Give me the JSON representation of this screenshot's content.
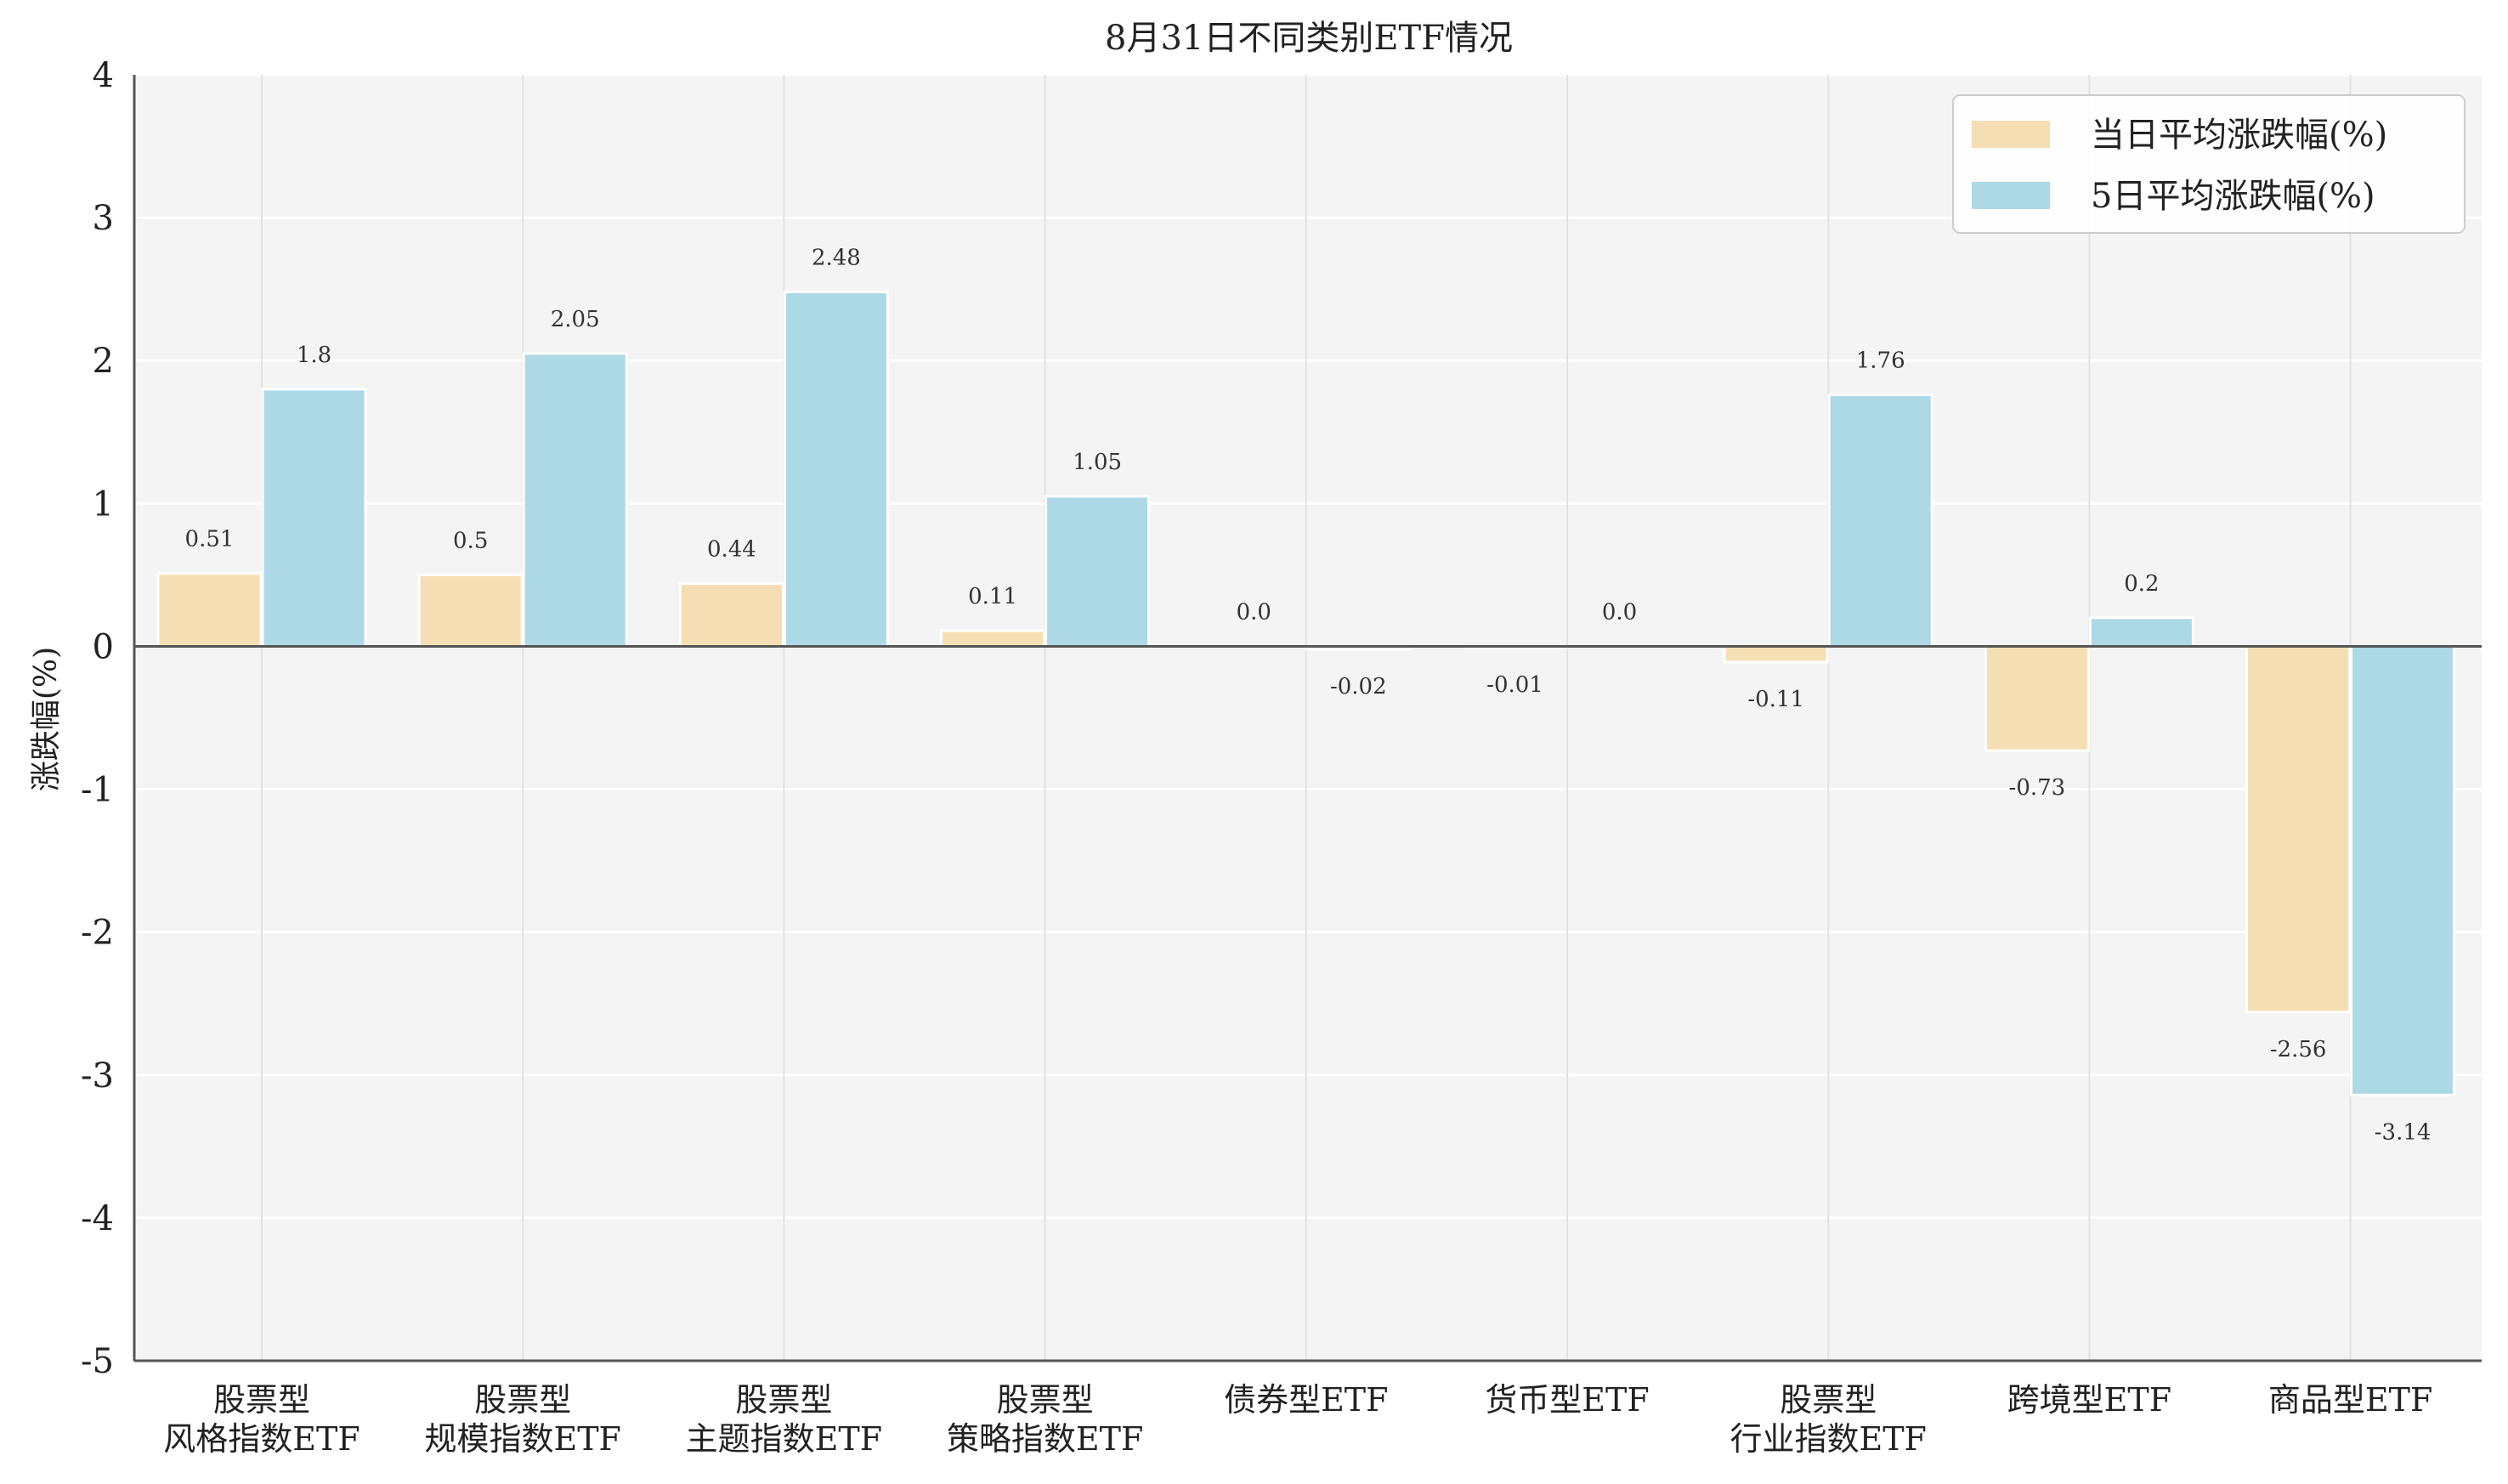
{
  "chart_data": {
    "type": "bar",
    "title": "8月31日不同类别ETF情况",
    "ylabel": "涨跌幅(%)",
    "xlabel": "",
    "ylim": [
      -5,
      4
    ],
    "yticks": [
      -5,
      -4,
      -3,
      -2,
      -1,
      0,
      1,
      2,
      3,
      4
    ],
    "grid": true,
    "legend_position": "top-right",
    "categories": [
      [
        "股票型",
        "风格指数ETF"
      ],
      [
        "股票型",
        "规模指数ETF"
      ],
      [
        "股票型",
        "主题指数ETF"
      ],
      [
        "股票型",
        "策略指数ETF"
      ],
      [
        "债券型ETF"
      ],
      [
        "货币型ETF"
      ],
      [
        "股票型",
        "行业指数ETF"
      ],
      [
        "跨境型ETF"
      ],
      [
        "商品型ETF"
      ]
    ],
    "series": [
      {
        "name": "当日平均涨跌幅(%)",
        "color": "#f5deb3",
        "values": [
          0.51,
          0.5,
          0.44,
          0.11,
          0.0,
          -0.01,
          -0.11,
          -0.73,
          -2.56
        ],
        "labels": [
          "0.51",
          "0.5",
          "0.44",
          "0.11",
          "0.0",
          "-0.01",
          "-0.11",
          "-0.73",
          "-2.56"
        ]
      },
      {
        "name": "5日平均涨跌幅(%)",
        "color": "#add8e6",
        "values": [
          1.8,
          2.05,
          2.48,
          1.05,
          -0.02,
          0.0,
          1.76,
          0.2,
          -3.14
        ],
        "labels": [
          "1.8",
          "2.05",
          "2.48",
          "1.05",
          "-0.02",
          "0.0",
          "1.76",
          "0.2",
          "-3.14"
        ]
      }
    ]
  }
}
